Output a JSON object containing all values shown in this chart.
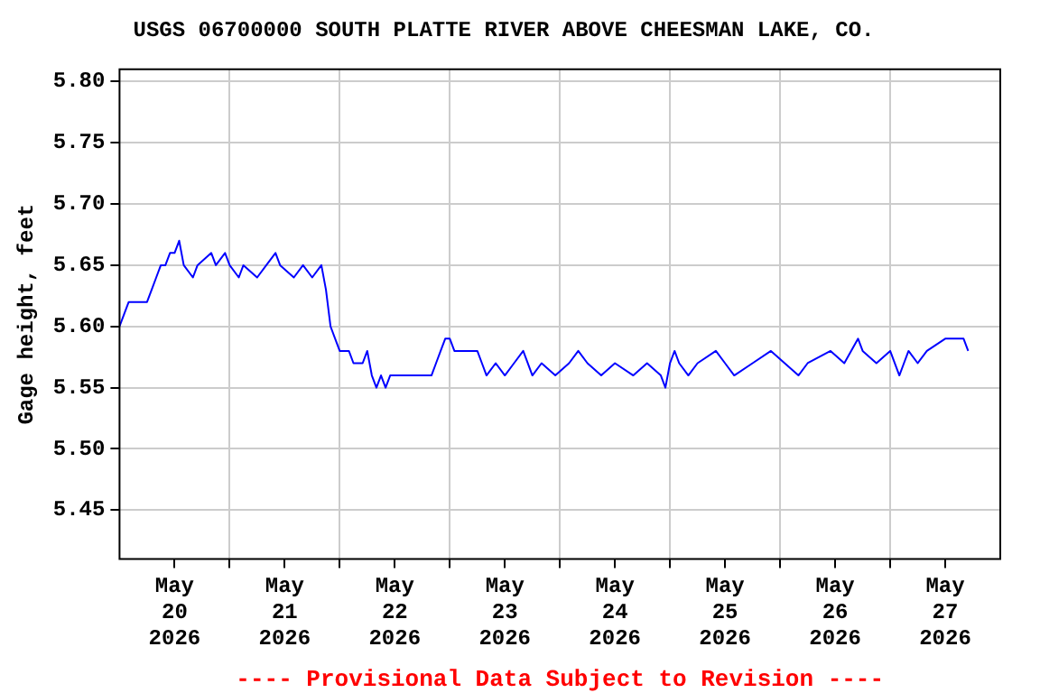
{
  "chart_data": {
    "type": "line",
    "title": "USGS 06700000 SOUTH PLATTE RIVER ABOVE CHEESMAN LAKE, CO.",
    "ylabel": "Gage height, feet",
    "annotations": [
      "---- Provisional Data Subject to Revision ----"
    ],
    "x": [
      "2026-05-20T00:00",
      "2026-05-20T01:00",
      "2026-05-20T02:00",
      "2026-05-20T06:00",
      "2026-05-20T07:00",
      "2026-05-20T08:00",
      "2026-05-20T09:00",
      "2026-05-20T10:00",
      "2026-05-20T11:00",
      "2026-05-20T12:00",
      "2026-05-20T13:00",
      "2026-05-20T14:00",
      "2026-05-20T16:00",
      "2026-05-20T17:00",
      "2026-05-20T20:00",
      "2026-05-20T21:00",
      "2026-05-20T23:00",
      "2026-05-21T00:00",
      "2026-05-21T02:00",
      "2026-05-21T03:00",
      "2026-05-21T06:00",
      "2026-05-21T08:00",
      "2026-05-21T10:00",
      "2026-05-21T11:00",
      "2026-05-21T14:00",
      "2026-05-21T16:00",
      "2026-05-21T18:00",
      "2026-05-21T20:00",
      "2026-05-21T21:00",
      "2026-05-21T22:00",
      "2026-05-21T23:00",
      "2026-05-22T00:00",
      "2026-05-22T02:00",
      "2026-05-22T03:00",
      "2026-05-22T05:00",
      "2026-05-22T06:00",
      "2026-05-22T07:00",
      "2026-05-22T08:00",
      "2026-05-22T09:00",
      "2026-05-22T10:00",
      "2026-05-22T11:00",
      "2026-05-22T20:00",
      "2026-05-22T21:00",
      "2026-05-22T22:00",
      "2026-05-22T23:00",
      "2026-05-23T00:00",
      "2026-05-23T01:00",
      "2026-05-23T06:00",
      "2026-05-23T07:00",
      "2026-05-23T08:00",
      "2026-05-23T10:00",
      "2026-05-23T12:00",
      "2026-05-23T14:00",
      "2026-05-23T16:00",
      "2026-05-23T18:00",
      "2026-05-23T20:00",
      "2026-05-23T23:00",
      "2026-05-24T02:00",
      "2026-05-24T04:00",
      "2026-05-24T06:00",
      "2026-05-24T09:00",
      "2026-05-24T12:00",
      "2026-05-24T16:00",
      "2026-05-24T19:00",
      "2026-05-24T22:00",
      "2026-05-24T23:00",
      "2026-05-25T00:00",
      "2026-05-25T01:00",
      "2026-05-25T02:00",
      "2026-05-25T04:00",
      "2026-05-25T06:00",
      "2026-05-25T10:00",
      "2026-05-25T12:00",
      "2026-05-25T14:00",
      "2026-05-25T18:00",
      "2026-05-25T22:00",
      "2026-05-26T01:00",
      "2026-05-26T04:00",
      "2026-05-26T06:00",
      "2026-05-26T11:00",
      "2026-05-26T14:00",
      "2026-05-26T17:00",
      "2026-05-26T18:00",
      "2026-05-26T21:00",
      "2026-05-27T00:00",
      "2026-05-27T02:00",
      "2026-05-27T03:00",
      "2026-05-27T04:00",
      "2026-05-27T06:00",
      "2026-05-27T08:00",
      "2026-05-27T12:00",
      "2026-05-27T16:00",
      "2026-05-27T17:00"
    ],
    "series": [
      {
        "color": "#0000ff",
        "values": [
          5.6,
          5.61,
          5.62,
          5.62,
          5.63,
          5.64,
          5.65,
          5.65,
          5.66,
          5.66,
          5.67,
          5.65,
          5.64,
          5.65,
          5.66,
          5.65,
          5.66,
          5.65,
          5.64,
          5.65,
          5.64,
          5.65,
          5.66,
          5.65,
          5.64,
          5.65,
          5.64,
          5.65,
          5.63,
          5.6,
          5.59,
          5.58,
          5.58,
          5.57,
          5.57,
          5.58,
          5.56,
          5.55,
          5.56,
          5.55,
          5.56,
          5.56,
          5.57,
          5.58,
          5.59,
          5.59,
          5.58,
          5.58,
          5.57,
          5.56,
          5.57,
          5.56,
          5.57,
          5.58,
          5.56,
          5.57,
          5.56,
          5.57,
          5.58,
          5.57,
          5.56,
          5.57,
          5.56,
          5.57,
          5.56,
          5.55,
          5.57,
          5.58,
          5.57,
          5.56,
          5.57,
          5.58,
          5.57,
          5.56,
          5.57,
          5.58,
          5.57,
          5.56,
          5.57,
          5.58,
          5.57,
          5.59,
          5.58,
          5.57,
          5.58,
          5.56,
          5.57,
          5.58,
          5.57,
          5.58,
          5.59,
          5.59,
          5.58
        ]
      }
    ],
    "xlim": [
      "2026-05-20T00:00",
      "2026-05-28T00:00"
    ],
    "xticks": [
      {
        "value": "2026-05-20T12:00",
        "label": "May\n20\n2026"
      },
      {
        "value": "2026-05-21T00:00",
        "label": null
      },
      {
        "value": "2026-05-21T12:00",
        "label": "May\n21\n2026"
      },
      {
        "value": "2026-05-22T00:00",
        "label": null
      },
      {
        "value": "2026-05-22T12:00",
        "label": "May\n22\n2026"
      },
      {
        "value": "2026-05-23T00:00",
        "label": null
      },
      {
        "value": "2026-05-23T12:00",
        "label": "May\n23\n2026"
      },
      {
        "value": "2026-05-24T00:00",
        "label": null
      },
      {
        "value": "2026-05-24T12:00",
        "label": "May\n24\n2026"
      },
      {
        "value": "2026-05-25T00:00",
        "label": null
      },
      {
        "value": "2026-05-25T12:00",
        "label": "May\n25\n2026"
      },
      {
        "value": "2026-05-26T00:00",
        "label": null
      },
      {
        "value": "2026-05-26T12:00",
        "label": "May\n26\n2026"
      },
      {
        "value": "2026-05-27T00:00",
        "label": null
      },
      {
        "value": "2026-05-27T12:00",
        "label": "May\n27\n2026"
      }
    ],
    "ylim": [
      5.41,
      5.81
    ],
    "yticks": [
      {
        "value": 5.45,
        "label": "5.45"
      },
      {
        "value": 5.5,
        "label": "5.50"
      },
      {
        "value": 5.55,
        "label": "5.55"
      },
      {
        "value": 5.6,
        "label": "5.60"
      },
      {
        "value": 5.65,
        "label": "5.65"
      },
      {
        "value": 5.7,
        "label": "5.70"
      },
      {
        "value": 5.75,
        "label": "5.75"
      },
      {
        "value": 5.8,
        "label": "5.80"
      }
    ],
    "grid": true,
    "marker": "none",
    "line_style": "solid"
  }
}
